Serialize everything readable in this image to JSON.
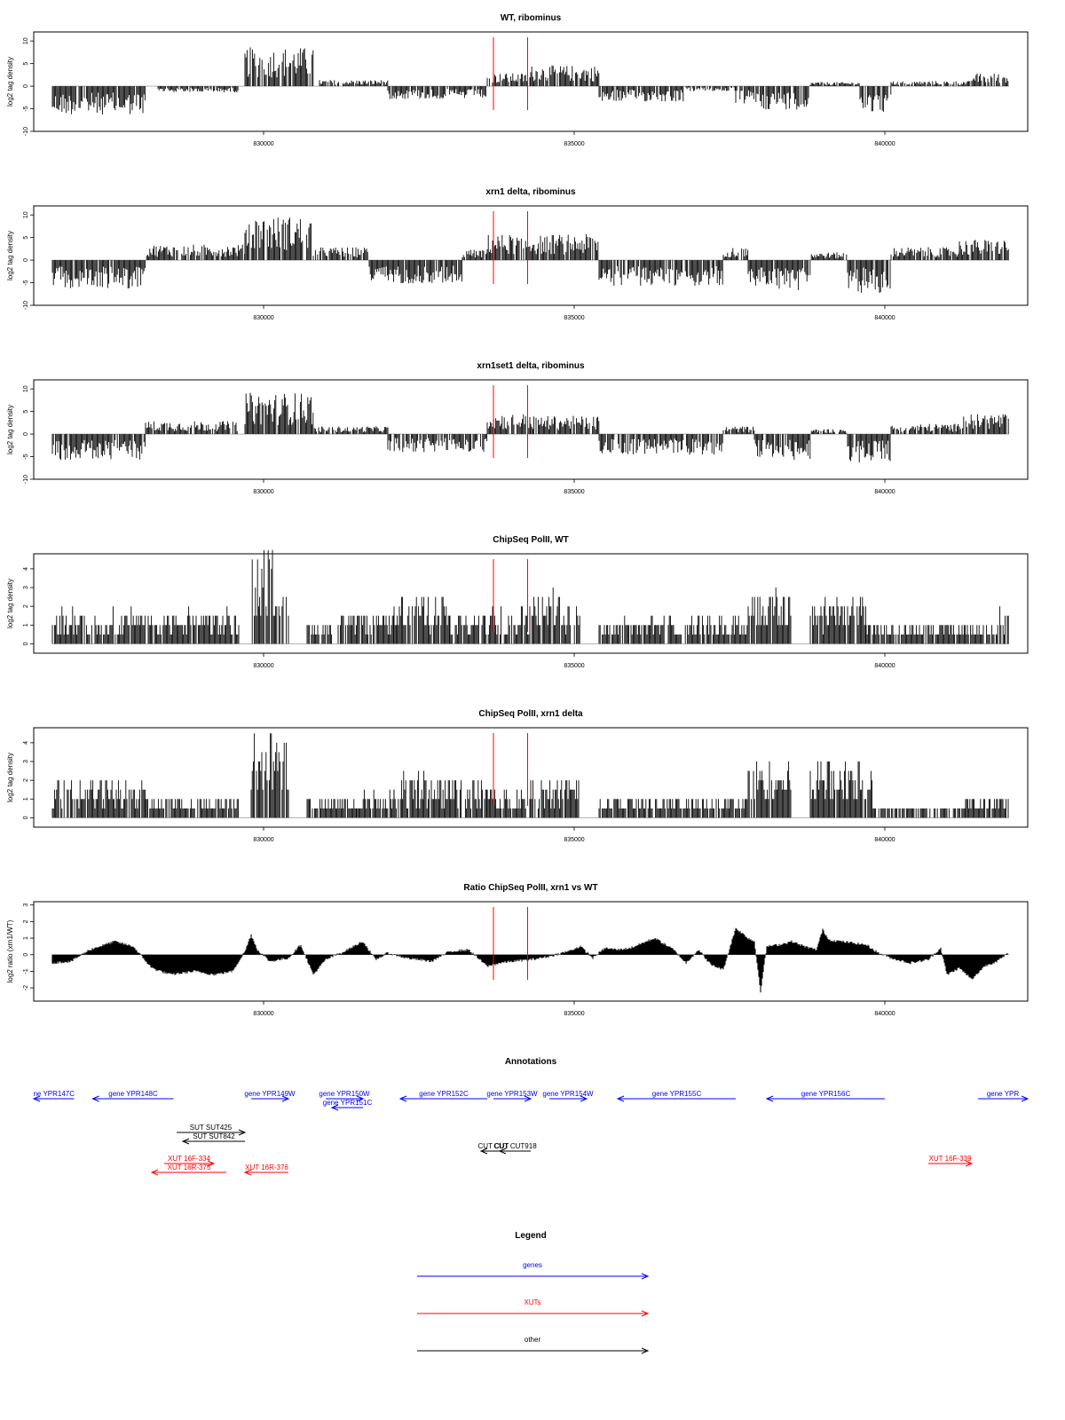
{
  "figure": {
    "type": "genome_browser_tracks",
    "colors": {
      "gene": "#0000ff",
      "xut": "#ff0000",
      "other": "#000000",
      "marker": "#ff0000",
      "bars": "#000000"
    }
  },
  "chart_data": [
    {
      "type": "bar",
      "title": "WT, ribominus",
      "ylabel": "log2 tag density",
      "ylim": [
        -10,
        12
      ],
      "yticks": [
        "10",
        "5",
        "0",
        "-5",
        "-10"
      ],
      "xlim": [
        826300,
        842300
      ],
      "xticks": [
        "830000",
        "835000",
        "840000"
      ],
      "marker_lines_x": [
        833700,
        834250
      ],
      "segments": [
        {
          "x": [
            826600,
            828100
          ],
          "v": -5.5
        },
        {
          "x": [
            828300,
            829600
          ],
          "v": -1.2
        },
        {
          "x": [
            829700,
            830800
          ],
          "v": 7.5
        },
        {
          "x": [
            830900,
            832000
          ],
          "v": 1.2
        },
        {
          "x": [
            832000,
            833600
          ],
          "v": -2.5
        },
        {
          "x": [
            833600,
            834300
          ],
          "v": 2.5
        },
        {
          "x": [
            834300,
            835400
          ],
          "v": 4.0
        },
        {
          "x": [
            835400,
            836800
          ],
          "v": -3.0
        },
        {
          "x": [
            836800,
            837600
          ],
          "v": -1.0
        },
        {
          "x": [
            837600,
            838000
          ],
          "v": -3.5
        },
        {
          "x": [
            838000,
            838800
          ],
          "v": -4.5
        },
        {
          "x": [
            838800,
            839600
          ],
          "v": 0.8
        },
        {
          "x": [
            839600,
            840100
          ],
          "v": -5.0
        },
        {
          "x": [
            840100,
            841400
          ],
          "v": 1.0
        },
        {
          "x": [
            841400,
            842000
          ],
          "v": 2.5
        }
      ]
    },
    {
      "type": "bar",
      "title": "xrn1 delta, ribominus",
      "ylabel": "log2 tag density",
      "ylim": [
        -10,
        12
      ],
      "yticks": [
        "10",
        "5",
        "0",
        "-5",
        "-10"
      ],
      "xlim": [
        826300,
        842300
      ],
      "xticks": [
        "830000",
        "835000",
        "840000"
      ],
      "marker_lines_x": [
        833700,
        834250
      ],
      "segments": [
        {
          "x": [
            826600,
            828100
          ],
          "v": -5.5
        },
        {
          "x": [
            828100,
            829700
          ],
          "v": 3.0
        },
        {
          "x": [
            829700,
            830800
          ],
          "v": 8.5
        },
        {
          "x": [
            830800,
            831700
          ],
          "v": 2.5
        },
        {
          "x": [
            831700,
            833200
          ],
          "v": -4.5
        },
        {
          "x": [
            833200,
            833600
          ],
          "v": 2.0
        },
        {
          "x": [
            833600,
            835400
          ],
          "v": 5.0
        },
        {
          "x": [
            835400,
            837400
          ],
          "v": -5.0
        },
        {
          "x": [
            837400,
            837800
          ],
          "v": 2.5
        },
        {
          "x": [
            837800,
            838300
          ],
          "v": -5.0
        },
        {
          "x": [
            838300,
            838800
          ],
          "v": -6.0
        },
        {
          "x": [
            838800,
            839400
          ],
          "v": 1.5
        },
        {
          "x": [
            839400,
            840100
          ],
          "v": -6.5
        },
        {
          "x": [
            840100,
            841200
          ],
          "v": 2.5
        },
        {
          "x": [
            841200,
            842000
          ],
          "v": 4.0
        }
      ]
    },
    {
      "type": "bar",
      "title": "xrn1set1 delta, ribominus",
      "ylabel": "log2 tag density",
      "ylim": [
        -10,
        12
      ],
      "yticks": [
        "10",
        "5",
        "0",
        "-5",
        "-10"
      ],
      "xlim": [
        826300,
        842300
      ],
      "xticks": [
        "830000",
        "835000",
        "840000"
      ],
      "marker_lines_x": [
        833700,
        834250
      ],
      "segments": [
        {
          "x": [
            826600,
            828100
          ],
          "v": -5.0
        },
        {
          "x": [
            828100,
            829600
          ],
          "v": 2.5
        },
        {
          "x": [
            829700,
            830800
          ],
          "v": 8.0
        },
        {
          "x": [
            830800,
            832000
          ],
          "v": 1.5
        },
        {
          "x": [
            832000,
            833600
          ],
          "v": -3.5
        },
        {
          "x": [
            833600,
            834300
          ],
          "v": 4.0
        },
        {
          "x": [
            834300,
            835400
          ],
          "v": 3.5
        },
        {
          "x": [
            835400,
            837400
          ],
          "v": -4.0
        },
        {
          "x": [
            837400,
            837900
          ],
          "v": 1.5
        },
        {
          "x": [
            837900,
            838300
          ],
          "v": -4.5
        },
        {
          "x": [
            838300,
            838800
          ],
          "v": -5.0
        },
        {
          "x": [
            838800,
            839400
          ],
          "v": 1.0
        },
        {
          "x": [
            839400,
            840100
          ],
          "v": -5.5
        },
        {
          "x": [
            840100,
            841200
          ],
          "v": 2.0
        },
        {
          "x": [
            841200,
            842000
          ],
          "v": 4.0
        }
      ]
    },
    {
      "type": "bar",
      "title": "ChipSeq PolII, WT",
      "ylabel": "log2 tag density",
      "ylim": [
        -0.5,
        4.8
      ],
      "yticks": [
        "4",
        "3",
        "2",
        "1",
        "0"
      ],
      "xlim": [
        826300,
        842300
      ],
      "xticks": [
        "830000",
        "835000",
        "840000"
      ],
      "marker_lines_x": [
        833700,
        834250
      ],
      "segments": [
        {
          "x": [
            826600,
            829600
          ],
          "v": 1.5
        },
        {
          "x": [
            829800,
            830400
          ],
          "v": 4.4
        },
        {
          "x": [
            830700,
            831100
          ],
          "v": 1.0
        },
        {
          "x": [
            831200,
            832100
          ],
          "v": 1.4
        },
        {
          "x": [
            832100,
            833000
          ],
          "v": 2.3
        },
        {
          "x": [
            833000,
            833600
          ],
          "v": 1.4
        },
        {
          "x": [
            833600,
            834300
          ],
          "v": 1.8
        },
        {
          "x": [
            834300,
            835100
          ],
          "v": 2.4
        },
        {
          "x": [
            835400,
            837800
          ],
          "v": 1.2
        },
        {
          "x": [
            837800,
            838500
          ],
          "v": 2.5
        },
        {
          "x": [
            838800,
            839700
          ],
          "v": 2.3
        },
        {
          "x": [
            839700,
            841800
          ],
          "v": 1.0
        },
        {
          "x": [
            841800,
            842000
          ],
          "v": 2.0
        }
      ]
    },
    {
      "type": "bar",
      "title": "ChipSeq PolII, xrn1 delta",
      "ylabel": "log2 tag density",
      "ylim": [
        -0.5,
        4.8
      ],
      "yticks": [
        "4",
        "3",
        "2",
        "1",
        "0"
      ],
      "xlim": [
        826300,
        842300
      ],
      "xticks": [
        "830000",
        "835000",
        "840000"
      ],
      "marker_lines_x": [
        833700,
        834250
      ],
      "segments": [
        {
          "x": [
            826600,
            828100
          ],
          "v": 1.6
        },
        {
          "x": [
            828100,
            829600
          ],
          "v": 1.0
        },
        {
          "x": [
            829800,
            830400
          ],
          "v": 4.0
        },
        {
          "x": [
            830700,
            831500
          ],
          "v": 1.0
        },
        {
          "x": [
            831500,
            832100
          ],
          "v": 1.2
        },
        {
          "x": [
            832100,
            833600
          ],
          "v": 2.0
        },
        {
          "x": [
            833600,
            834300
          ],
          "v": 1.3
        },
        {
          "x": [
            834300,
            835100
          ],
          "v": 1.8
        },
        {
          "x": [
            835400,
            837800
          ],
          "v": 1.0
        },
        {
          "x": [
            837800,
            838500
          ],
          "v": 2.5
        },
        {
          "x": [
            838800,
            839800
          ],
          "v": 2.6
        },
        {
          "x": [
            839800,
            841300
          ],
          "v": 0.6
        },
        {
          "x": [
            841300,
            842000
          ],
          "v": 1.0
        }
      ]
    },
    {
      "type": "area",
      "title": "Ratio ChipSeq PolII, xrn1 vs WT",
      "ylabel": "log2 ratio (xrn1/WT)",
      "ylim": [
        -2.8,
        3.2
      ],
      "yticks": [
        "3",
        "2",
        "1",
        "0",
        "-1",
        "-2"
      ],
      "xlim": [
        826300,
        842300
      ],
      "xticks": [
        "830000",
        "835000",
        "840000"
      ],
      "marker_lines_x": [
        833700,
        834250
      ],
      "x": [
        826600,
        826900,
        827200,
        827600,
        827900,
        828200,
        828500,
        828900,
        829200,
        829500,
        829700,
        829800,
        829900,
        830100,
        830400,
        830600,
        830800,
        831000,
        831300,
        831600,
        831800,
        832000,
        832300,
        832700,
        833000,
        833300,
        833600,
        833800,
        834000,
        834300,
        834600,
        834900,
        835100,
        835300,
        835500,
        835700,
        835900,
        836100,
        836300,
        836600,
        836800,
        837000,
        837200,
        837400,
        837600,
        837800,
        837900,
        838000,
        838100,
        838300,
        838500,
        838700,
        838900,
        839000,
        839100,
        839300,
        839500,
        839700,
        839900,
        840100,
        840400,
        840700,
        840900,
        841000,
        841200,
        841400,
        841600,
        841800,
        842000
      ],
      "y": [
        -0.5,
        -0.4,
        0.3,
        0.8,
        0.5,
        -0.8,
        -1.2,
        -1.0,
        -1.2,
        -1.0,
        0.2,
        1.2,
        0.3,
        -0.4,
        -0.2,
        0.6,
        -1.2,
        -0.3,
        0.2,
        0.8,
        -0.3,
        0.1,
        -0.2,
        -0.4,
        0.2,
        0.3,
        -0.7,
        -0.5,
        -0.4,
        -0.3,
        -0.1,
        0.2,
        0.5,
        -0.2,
        0.4,
        0.3,
        0.4,
        0.7,
        1.0,
        0.3,
        -0.5,
        0.3,
        -0.6,
        -0.9,
        1.6,
        1.0,
        0.8,
        -2.2,
        0.5,
        0.6,
        0.8,
        0.5,
        0.3,
        1.5,
        0.9,
        0.8,
        0.7,
        0.6,
        0.1,
        -0.2,
        -0.5,
        -0.3,
        0.4,
        -1.2,
        -0.8,
        -1.5,
        -0.7,
        -0.4,
        0.1
      ]
    }
  ],
  "annotations": {
    "title": "Annotations",
    "xlim": [
      826300,
      842300
    ],
    "items": [
      {
        "label": "ne YPR147C",
        "kind": "gene",
        "row": 0,
        "x1": 826300,
        "x2": 826950,
        "dir": "left"
      },
      {
        "label": "gene YPR148C",
        "kind": "gene",
        "row": 0,
        "x1": 827250,
        "x2": 828550,
        "dir": "left"
      },
      {
        "label": "gene YPR149W",
        "kind": "gene",
        "row": 0,
        "x1": 829800,
        "x2": 830400,
        "dir": "right"
      },
      {
        "label": "gene YPR150W",
        "kind": "gene",
        "row": 0,
        "x1": 831000,
        "x2": 831600,
        "dir": "right"
      },
      {
        "label": "gene YPR151C",
        "kind": "gene",
        "row": 1,
        "x1": 831100,
        "x2": 831600,
        "dir": "left"
      },
      {
        "label": "gene YPR152C",
        "kind": "gene",
        "row": 0,
        "x1": 832200,
        "x2": 833600,
        "dir": "left"
      },
      {
        "label": "gene YPR153W",
        "kind": "gene",
        "row": 0,
        "x1": 833700,
        "x2": 834300,
        "dir": "right"
      },
      {
        "label": "gene YPR154W",
        "kind": "gene",
        "row": 0,
        "x1": 834600,
        "x2": 835200,
        "dir": "right"
      },
      {
        "label": "gene YPR155C",
        "kind": "gene",
        "row": 0,
        "x1": 835700,
        "x2": 837600,
        "dir": "left"
      },
      {
        "label": "gene YPR156C",
        "kind": "gene",
        "row": 0,
        "x1": 838100,
        "x2": 840000,
        "dir": "left"
      },
      {
        "label": "gene YPR",
        "kind": "gene",
        "row": 0,
        "x1": 841500,
        "x2": 842300,
        "dir": "right"
      },
      {
        "label": "SUT SUT425",
        "kind": "other",
        "row": 2,
        "x1": 828600,
        "x2": 829700,
        "dir": "right"
      },
      {
        "label": "SUT SUT842",
        "kind": "other",
        "row": 3,
        "x1": 828700,
        "x2": 829700,
        "dir": "left"
      },
      {
        "label": "CUT CUT",
        "kind": "other",
        "row": 4,
        "x1": 833500,
        "x2": 833900,
        "dir": "left"
      },
      {
        "label": "CUT CUT918",
        "kind": "other",
        "row": 4,
        "x1": 833800,
        "x2": 834300,
        "dir": "left"
      },
      {
        "label": "XUT 16F-334",
        "kind": "xut",
        "row": 5,
        "x1": 828400,
        "x2": 829200,
        "dir": "right"
      },
      {
        "label": "XUT 16R-375",
        "kind": "xut",
        "row": 6,
        "x1": 828200,
        "x2": 829400,
        "dir": "left"
      },
      {
        "label": "XUT 16R-376",
        "kind": "xut",
        "row": 6,
        "x1": 829700,
        "x2": 830400,
        "dir": "left"
      },
      {
        "label": "XUT 16F-339",
        "kind": "xut",
        "row": 5,
        "x1": 840700,
        "x2": 841400,
        "dir": "right"
      }
    ]
  },
  "legend": {
    "title": "Legend",
    "items": [
      {
        "label": "genes",
        "kind": "gene"
      },
      {
        "label": "XUTs",
        "kind": "xut"
      },
      {
        "label": "other",
        "kind": "other"
      }
    ]
  }
}
